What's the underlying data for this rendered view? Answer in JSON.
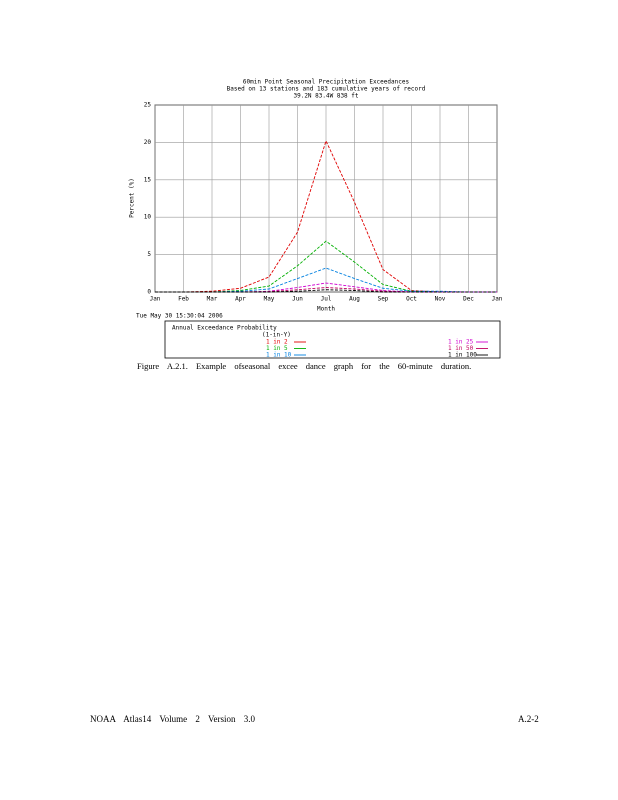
{
  "chart_data": {
    "type": "line",
    "title": "60min Point Seasonal Precipitation Exceedances",
    "subtitle": "Based on 13 stations and 183 cumulative years of record",
    "location": "39.2N 83.4W 838 ft",
    "x_label": "Month",
    "y_label": "Percent (%)",
    "timestamp": "Tue May 30 15:30:04 2006",
    "legend_title": "Annual Exceedance Probability",
    "legend_subtitle": "(1-in-Y)",
    "categories": [
      "Jan",
      "Feb",
      "Mar",
      "Apr",
      "May",
      "Jun",
      "Jul",
      "Aug",
      "Sep",
      "Oct",
      "Nov",
      "Dec",
      "Jan"
    ],
    "ylim": [
      0,
      25
    ],
    "yticks": [
      0,
      5,
      10,
      15,
      20,
      25
    ],
    "grid": true,
    "series": [
      {
        "name": "1 in 2",
        "color": "#e00000",
        "values": [
          0,
          0,
          0.1,
          0.5,
          2,
          8,
          20.2,
          12,
          3,
          0.2,
          0,
          0,
          0
        ]
      },
      {
        "name": "1 in 5",
        "color": "#00b000",
        "values": [
          0,
          0,
          0,
          0.2,
          0.8,
          3.5,
          6.8,
          4,
          1,
          0.1,
          0,
          0,
          0
        ]
      },
      {
        "name": "1 in 10",
        "color": "#0080e0",
        "values": [
          0,
          0,
          0,
          0.1,
          0.4,
          1.8,
          3.2,
          1.8,
          0.5,
          0.1,
          0.1,
          0,
          0
        ]
      },
      {
        "name": "1 in 25",
        "color": "#d000d0",
        "values": [
          0,
          0,
          0,
          0,
          0.1,
          0.6,
          1.2,
          0.7,
          0.2,
          0,
          0,
          0,
          0
        ]
      },
      {
        "name": "1 in 50",
        "color": "#c00060",
        "values": [
          0,
          0,
          0,
          0,
          0.05,
          0.3,
          0.6,
          0.4,
          0.1,
          0,
          0,
          0,
          0
        ]
      },
      {
        "name": "1 in 100",
        "color": "#000000",
        "values": [
          0,
          0,
          0,
          0,
          0,
          0.1,
          0.3,
          0.2,
          0,
          0,
          0,
          0,
          0
        ]
      }
    ]
  },
  "caption": "Figure A.2.1. Example ofseasonal excee dance graph for the 60-minute duration.",
  "footer": {
    "left": "NOAA Atlas14 Volume 2 Version 3.0",
    "right": "A.2-2"
  }
}
